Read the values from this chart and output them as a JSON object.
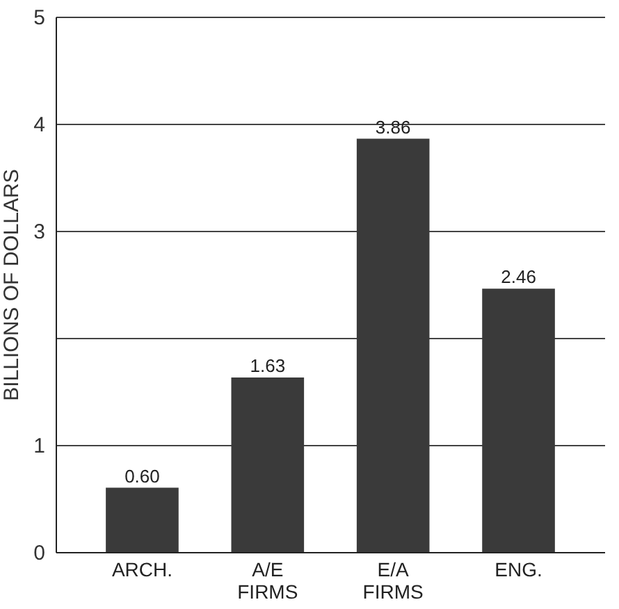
{
  "chart_data": {
    "type": "bar",
    "ylabel": "BILLIONS OF DOLLARS",
    "categories": [
      "ARCH.",
      "A/E FIRMS",
      "E/A FIRMS",
      "ENG."
    ],
    "values": [
      0.6,
      1.63,
      3.86,
      2.46
    ],
    "color": "#3a3a3a",
    "ylim": [
      0,
      5
    ],
    "yticks": [
      0,
      1,
      {
        "value": 2,
        "label": null
      },
      3,
      4,
      5
    ],
    "grid": "y",
    "value_labels": [
      "0.60",
      "1.63",
      "3.86",
      "2.46"
    ]
  }
}
